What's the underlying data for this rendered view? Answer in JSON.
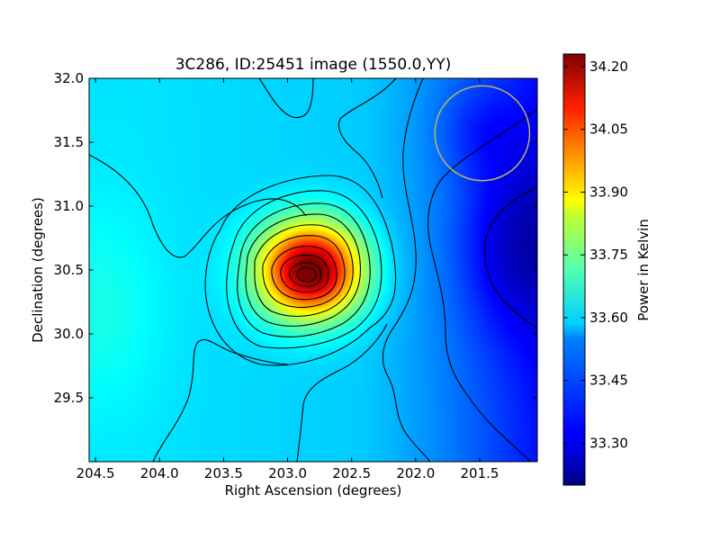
{
  "chart_data": {
    "type": "heatmap",
    "title": "3C286, ID:25451 image (1550.0,YY)",
    "xlabel": "Right Ascension (degrees)",
    "ylabel": "Declination (degrees)",
    "xlim": [
      204.55,
      201.05
    ],
    "ylim": [
      29.0,
      32.0
    ],
    "x_ticks": [
      {
        "value": 204.5,
        "label": "204.5"
      },
      {
        "value": 204.0,
        "label": "204.0"
      },
      {
        "value": 203.5,
        "label": "203.5"
      },
      {
        "value": 203.0,
        "label": "203.0"
      },
      {
        "value": 202.5,
        "label": "202.5"
      },
      {
        "value": 202.0,
        "label": "202.0"
      },
      {
        "value": 201.5,
        "label": "201.5"
      }
    ],
    "y_ticks": [
      {
        "value": 29.5,
        "label": "29.5"
      },
      {
        "value": 30.0,
        "label": "30.0"
      },
      {
        "value": 30.5,
        "label": "30.5"
      },
      {
        "value": 31.0,
        "label": "31.0"
      },
      {
        "value": 31.5,
        "label": "31.5"
      },
      {
        "value": 32.0,
        "label": "32.0"
      }
    ],
    "colorbar": {
      "label": "Power in Kelvin",
      "colormap": "jet",
      "range": [
        33.2,
        34.23
      ],
      "ticks": [
        {
          "value": 33.3,
          "label": "33.30"
        },
        {
          "value": 33.45,
          "label": "33.45"
        },
        {
          "value": 33.6,
          "label": "33.60"
        },
        {
          "value": 33.75,
          "label": "33.75"
        },
        {
          "value": 33.9,
          "label": "33.90"
        },
        {
          "value": 34.05,
          "label": "34.05"
        },
        {
          "value": 34.2,
          "label": "34.20"
        }
      ]
    },
    "peak": {
      "ra": 202.82,
      "dec": 30.5,
      "value": 34.22
    },
    "beam_circle": {
      "ra": 201.48,
      "dec": 31.57,
      "radius_deg": 0.37,
      "color": "#b8b460"
    },
    "grid": false
  }
}
